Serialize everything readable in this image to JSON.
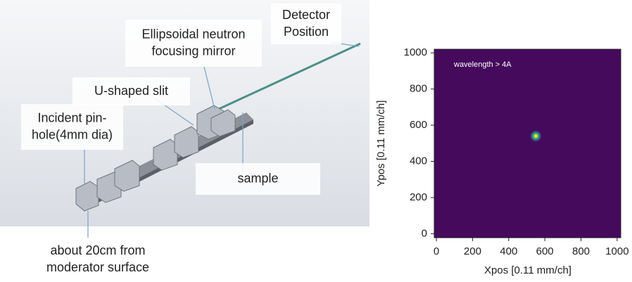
{
  "diagram": {
    "labels": [
      {
        "lines": [
          "Detector",
          "Position"
        ]
      },
      {
        "lines": [
          "Ellipsoidal neutron",
          "focusing mirror"
        ]
      },
      {
        "lines": [
          "U-shaped slit"
        ]
      },
      {
        "lines": [
          "Incident pin-",
          "hole(4mm dia)"
        ]
      },
      {
        "lines": [
          "sample"
        ]
      },
      {
        "lines": [
          "about 20cm from",
          "moderator surface"
        ]
      }
    ]
  },
  "chart_data": {
    "type": "heatmap",
    "annotation": "wavelength > 4A",
    "xlabel": "Xpos [0.11 mm/ch]",
    "ylabel": "Ypos [0.11 mm/ch]",
    "x": [
      550
    ],
    "values": [
      540
    ],
    "background_color": "#450a5c",
    "color": "#f5e21b",
    "xlim": [
      -12,
      1020
    ],
    "ylim": [
      -22,
      1020
    ],
    "xticks": [
      0,
      200,
      400,
      600,
      800,
      1000
    ],
    "yticks": [
      0,
      200,
      400,
      600,
      800,
      1000
    ]
  }
}
